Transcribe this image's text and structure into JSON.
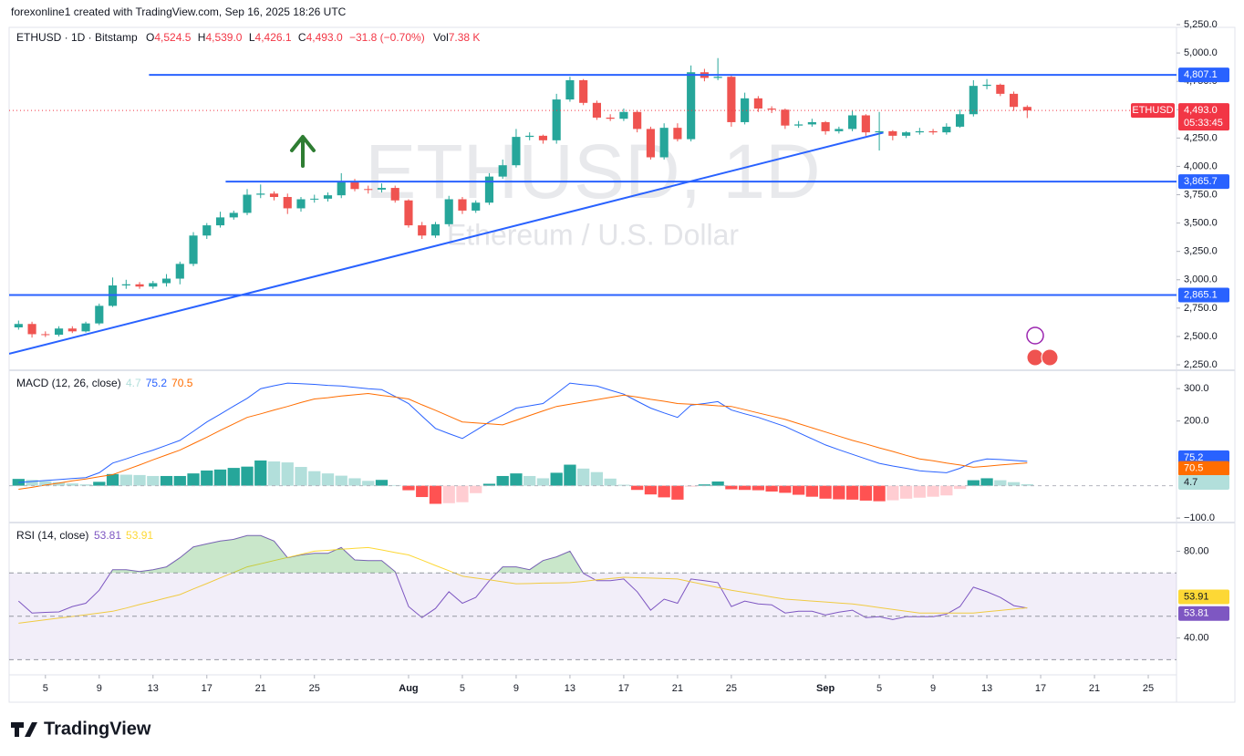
{
  "header": {
    "attribution": "forexonline1 created with TradingView.com, Sep 16, 2025 18:26 UTC",
    "symbol": "ETHUSD · 1D · Bitstamp",
    "ohlc": [
      {
        "label": "O",
        "value": "4,524.5"
      },
      {
        "label": "H",
        "value": "4,539.0"
      },
      {
        "label": "L",
        "value": "4,426.1"
      },
      {
        "label": "C",
        "value": "4,493.0"
      }
    ],
    "change": "−31.8 (−0.70%)",
    "vol_label": "Vol",
    "vol": "7.38 K"
  },
  "watermark": {
    "title": "ETHUSD, 1D",
    "subtitle": "Ethereum / U.S. Dollar"
  },
  "footer": {
    "logo": "TradingView"
  },
  "chart_data": [
    {
      "type": "candlestick",
      "xlim": [
        -0.7,
        86.1
      ],
      "xticks": [
        {
          "value": 2,
          "label": "5"
        },
        {
          "value": 6,
          "label": "9"
        },
        {
          "value": 10,
          "label": "13"
        },
        {
          "value": 14,
          "label": "17"
        },
        {
          "value": 18,
          "label": "21"
        },
        {
          "value": 22,
          "label": "25"
        },
        {
          "value": 29,
          "label": "Aug"
        },
        {
          "value": 33,
          "label": "5"
        },
        {
          "value": 37,
          "label": "9"
        },
        {
          "value": 41,
          "label": "13"
        },
        {
          "value": 45,
          "label": "17"
        },
        {
          "value": 49,
          "label": "21"
        },
        {
          "value": 53,
          "label": "25"
        },
        {
          "value": 60,
          "label": "Sep"
        },
        {
          "value": 64,
          "label": "5"
        },
        {
          "value": 68,
          "label": "9"
        },
        {
          "value": 72,
          "label": "13"
        },
        {
          "value": 76,
          "label": "17"
        },
        {
          "value": 80,
          "label": "21"
        },
        {
          "value": 84,
          "label": "25"
        }
      ],
      "ylim": [
        2210,
        5226
      ],
      "yticks": [
        {
          "value": 2250,
          "label": "2,250.0"
        },
        {
          "value": 2500,
          "label": "2,500.0"
        },
        {
          "value": 2750,
          "label": "2,750.0"
        },
        {
          "value": 3000,
          "label": "3,000.0"
        },
        {
          "value": 3250,
          "label": "3,250.0"
        },
        {
          "value": 3500,
          "label": "3,500.0"
        },
        {
          "value": 3750,
          "label": "3,750.0"
        },
        {
          "value": 4000,
          "label": "4,000.0"
        },
        {
          "value": 4250,
          "label": "4,250.0"
        },
        {
          "value": 4500,
          "label": "4,500.0"
        },
        {
          "value": 4750,
          "label": "4,750.0"
        },
        {
          "value": 5000,
          "label": "5,000.0"
        },
        {
          "value": 5250,
          "label": "5,250.0"
        }
      ],
      "up_color": "#26a69a",
      "down_color": "#ef5350",
      "open": [
        2580,
        2610,
        2520,
        2515,
        2570,
        2545,
        2615,
        2770,
        2950,
        2960,
        2940,
        2970,
        3010,
        3140,
        3390,
        3480,
        3550,
        3590,
        3750,
        3760,
        3730,
        3630,
        3710,
        3715,
        3745,
        3870,
        3800,
        3795,
        3810,
        3700,
        3480,
        3390,
        3490,
        3710,
        3610,
        3680,
        3910,
        4010,
        4260,
        4270,
        4230,
        4590,
        4760,
        4560,
        4430,
        4420,
        4480,
        4330,
        4080,
        4340,
        4240,
        4830,
        4780,
        4790,
        4390,
        4600,
        4510,
        4500,
        4360,
        4370,
        4390,
        4310,
        4330,
        4450,
        4300,
        4310,
        4270,
        4300,
        4310,
        4300,
        4350,
        4460,
        4710,
        4720,
        4640,
        4524.5
      ],
      "high": [
        2640,
        2630,
        2545,
        2590,
        2590,
        2630,
        2790,
        3020,
        3000,
        2980,
        2990,
        3050,
        3160,
        3420,
        3500,
        3600,
        3610,
        3800,
        3840,
        3780,
        3760,
        3730,
        3750,
        3770,
        3940,
        3890,
        3830,
        3850,
        3830,
        3710,
        3510,
        3510,
        3740,
        3730,
        3700,
        3940,
        4060,
        4330,
        4300,
        4280,
        4640,
        4790,
        4770,
        4580,
        4460,
        4510,
        4490,
        4350,
        4380,
        4380,
        4890,
        4860,
        4955,
        4800,
        4650,
        4620,
        4530,
        4510,
        4400,
        4420,
        4400,
        4350,
        4490,
        4460,
        4480,
        4320,
        4310,
        4340,
        4330,
        4380,
        4500,
        4760,
        4770,
        4730,
        4660,
        4539.0
      ],
      "low": [
        2560,
        2490,
        2495,
        2500,
        2530,
        2535,
        2600,
        2760,
        2920,
        2920,
        2920,
        2940,
        2960,
        3120,
        3360,
        3460,
        3530,
        3570,
        3720,
        3700,
        3580,
        3600,
        3680,
        3690,
        3720,
        3780,
        3760,
        3770,
        3680,
        3460,
        3360,
        3370,
        3470,
        3580,
        3590,
        3660,
        3890,
        3990,
        4230,
        4200,
        4200,
        4570,
        4540,
        4410,
        4400,
        4400,
        4300,
        4060,
        4060,
        4220,
        4220,
        4750,
        4760,
        4350,
        4370,
        4480,
        4470,
        4330,
        4340,
        4350,
        4280,
        4290,
        4310,
        4270,
        4140,
        4230,
        4250,
        4280,
        4280,
        4280,
        4340,
        4440,
        4680,
        4620,
        4490,
        4426.1
      ],
      "close": [
        2610,
        2520,
        2515,
        2570,
        2545,
        2615,
        2770,
        2950,
        2960,
        2940,
        2970,
        3010,
        3140,
        3390,
        3480,
        3550,
        3590,
        3750,
        3760,
        3730,
        3630,
        3710,
        3715,
        3745,
        3870,
        3800,
        3795,
        3810,
        3700,
        3480,
        3390,
        3490,
        3710,
        3610,
        3680,
        3910,
        4010,
        4260,
        4270,
        4230,
        4590,
        4760,
        4560,
        4430,
        4420,
        4480,
        4330,
        4080,
        4340,
        4240,
        4830,
        4780,
        4790,
        4390,
        4600,
        4510,
        4500,
        4360,
        4370,
        4390,
        4310,
        4330,
        4450,
        4300,
        4310,
        4270,
        4300,
        4310,
        4300,
        4350,
        4460,
        4710,
        4720,
        4640,
        4524.5,
        4493.0
      ],
      "hlines": {
        "values": [
          4807.1,
          3865.7,
          2865.1
        ],
        "value_labels": [
          "4,807.1",
          "3,865.7",
          "2,865.1"
        ],
        "color": "#2962ff"
      },
      "trendline": {
        "values": [
          2347,
          4298
        ],
        "color": "#2962ff"
      },
      "last_price": {
        "name": "ETHUSD",
        "value": 4493.0,
        "value_label": "4,493.0",
        "countdown": "05:33:45",
        "color": "#f23645"
      }
    },
    {
      "type": "macd",
      "title": "MACD (12, 26, close)",
      "ylim": [
        -111,
        354
      ],
      "yticks": [
        {
          "value": 300,
          "label": "300.0"
        },
        {
          "value": 200,
          "label": "200.0"
        },
        {
          "value": -100,
          "label": "−100.0"
        }
      ],
      "baseline": 0,
      "histogram": {
        "colors": [
          "#26a69a",
          "#b2dfdb",
          "#ff5252",
          "#ffcdd2"
        ],
        "label_color": "#b2dfdb",
        "last_label": "4.7",
        "values": [
          21,
          18,
          14,
          11,
          7,
          4,
          12,
          36,
          34,
          33,
          30,
          30,
          30,
          38,
          47,
          50,
          55,
          59,
          78,
          75,
          72,
          58,
          45,
          38,
          31,
          23,
          15,
          18,
          2,
          -14,
          -35,
          -56,
          -54,
          -51,
          -23,
          6,
          30,
          38,
          30,
          23,
          40,
          65,
          53,
          42,
          22,
          3,
          -13,
          -27,
          -36,
          -43,
          -3,
          4,
          13,
          -11,
          -13,
          -14,
          -18,
          -22,
          -28,
          -34,
          -40,
          -42,
          -43,
          -46,
          -48,
          -45,
          -40,
          -37,
          -34,
          -30,
          -10,
          17,
          23,
          17,
          11,
          4.7
        ]
      },
      "series": [
        {
          "color": "#2962ff",
          "last_label": "75.2",
          "values": [
            10,
            13,
            16,
            19,
            22,
            25,
            40,
            70,
            83,
            97,
            110,
            125,
            140,
            168,
            197,
            221,
            246,
            270,
            300,
            309,
            317,
            315,
            313,
            310,
            308,
            304,
            300,
            297,
            276,
            254,
            215,
            177,
            161,
            146,
            171,
            197,
            218,
            240,
            247,
            254,
            285,
            317,
            312,
            308,
            295,
            283,
            261,
            240,
            225,
            211,
            249,
            254,
            260,
            234,
            222,
            211,
            197,
            183,
            164,
            145,
            126,
            111,
            97,
            83,
            69,
            61,
            54,
            46,
            43,
            40,
            54,
            74,
            83,
            81,
            78,
            75.2
          ]
        },
        {
          "color": "#ff6d00",
          "last_label": "70.5",
          "values": [
            -11,
            -5,
            2,
            8,
            15,
            21,
            28,
            34,
            49,
            64,
            80,
            95,
            110,
            130,
            150,
            171,
            191,
            211,
            222,
            234,
            245,
            257,
            268,
            272,
            277,
            281,
            285,
            279,
            274,
            268,
            250,
            233,
            215,
            197,
            194,
            191,
            188,
            202,
            217,
            231,
            245,
            252,
            259,
            266,
            273,
            280,
            274,
            267,
            261,
            254,
            252,
            250,
            247,
            245,
            235,
            225,
            215,
            205,
            192,
            179,
            166,
            153,
            140,
            129,
            117,
            106,
            94,
            83,
            77,
            70,
            64,
            57,
            60,
            64,
            67,
            70.5
          ]
        }
      ]
    },
    {
      "type": "rsi",
      "title": "RSI (14, close)",
      "ylim": [
        23,
        92.8
      ],
      "yticks": [
        {
          "value": 80,
          "label": "80.00"
        },
        {
          "value": 40,
          "label": "40.00"
        }
      ],
      "bands": [
        70,
        50,
        30
      ],
      "band_color": "#7e57c2",
      "overbought_color": "#4caf50",
      "series": [
        {
          "color": "#7e57c2",
          "last_label": "53.81",
          "values": [
            57,
            51.5,
            51.8,
            52,
            54.5,
            56,
            62,
            71.5,
            71.5,
            70.6,
            71.5,
            72.8,
            77,
            82,
            83.4,
            84.7,
            85.5,
            87.2,
            87.2,
            84.7,
            77,
            78.3,
            79,
            79,
            81.7,
            76,
            75.7,
            75.7,
            70.6,
            54.5,
            49.4,
            53.6,
            61.3,
            56,
            58.7,
            66.4,
            72.8,
            72.8,
            71.5,
            75.7,
            77.4,
            80,
            69.8,
            66.4,
            66.4,
            67.2,
            61.3,
            52.8,
            57.9,
            56,
            67.2,
            66.4,
            65.5,
            54.5,
            57,
            55.7,
            55.3,
            51.5,
            52.3,
            52.3,
            50.6,
            51.9,
            52.8,
            49.4,
            49.8,
            48.5,
            49.8,
            49.8,
            49.8,
            51,
            54.5,
            63.4,
            61.3,
            58.7,
            54.9,
            53.81
          ]
        },
        {
          "color": "#fdd835",
          "last_label": "53.91",
          "values": [
            46.8,
            47.6,
            48.4,
            49.2,
            49.9,
            50.7,
            51.5,
            52.3,
            53.8,
            55.4,
            56.9,
            58.5,
            60,
            62.6,
            65.1,
            67.7,
            70.2,
            72.8,
            74.2,
            75.7,
            77.1,
            78.6,
            80,
            80.4,
            80.9,
            81.3,
            81.7,
            80.6,
            79.4,
            78.3,
            75.9,
            73.4,
            71,
            68.5,
            67.6,
            66.8,
            65.9,
            65,
            65.1,
            65.3,
            65.4,
            65.5,
            66.1,
            66.8,
            67.4,
            68,
            67.8,
            67.6,
            67.4,
            67.2,
            65.9,
            64.6,
            63.3,
            62,
            61,
            60,
            58.9,
            57.9,
            57.5,
            57,
            56.6,
            56.1,
            55.7,
            54.9,
            54,
            53.2,
            52.3,
            51.5,
            51.5,
            51.5,
            51.5,
            51.5,
            52.1,
            52.7,
            53.3,
            53.91
          ]
        }
      ]
    }
  ]
}
